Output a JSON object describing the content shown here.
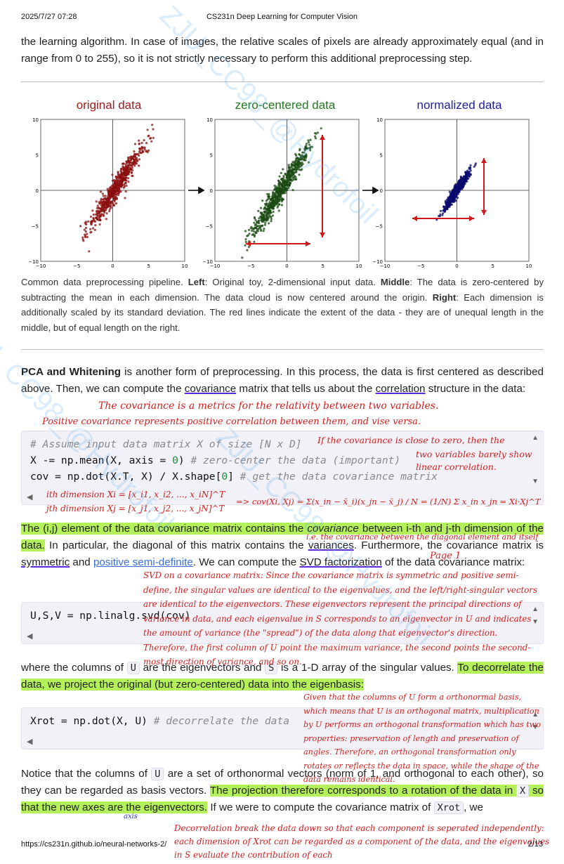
{
  "header": {
    "date": "2025/7/27 07:28",
    "title": "CS231n Deep Learning for Computer Vision"
  },
  "footer": {
    "url": "https://cs231n.github.io/neural-networks-2/",
    "page": "2/13"
  },
  "intro": {
    "text": "the learning algorithm. In case of images, the relative scales of pixels are already approximately equal (and in range from 0 to 255), so it is not strictly necessary to perform this additional preprocessing step."
  },
  "figure": {
    "panels": [
      {
        "title": "original data",
        "title_color": "#a01c1c",
        "point_color": "#8b0f0f"
      },
      {
        "title": "zero-centered data",
        "title_color": "#1f7a1f",
        "point_color": "#1a4a12"
      },
      {
        "title": "normalized data",
        "title_color": "#1f1fa0",
        "point_color": "#0a0a6e"
      }
    ],
    "arrow_color": "#d01818",
    "ticks": {
      "x": [
        "−10",
        "−5",
        "0",
        "5",
        "10"
      ],
      "y": [
        "10",
        "5",
        "0",
        "−5",
        "−10"
      ]
    }
  },
  "caption": {
    "t1": "Common data preprocessing pipeline. ",
    "left_b": "Left",
    "t2": ": Original toy, 2-dimensional input data. ",
    "middle_b": "Middle",
    "t3": ": The data is zero-centered by subtracting the mean in each dimension. The data cloud is now centered around the origin. ",
    "right_b": "Right",
    "t4": ": Each dimension is additionally scaled by its standard deviation. The red lines indicate the extent of the data - they are of unequal length in the middle, but of equal length on the right."
  },
  "pca": {
    "bold": "PCA and Whitening",
    "t1": " is another form of preprocessing. In this process, the data is first centered as described above. Then, we can compute the ",
    "covariance": "covariance",
    "t2": " matrix that tells us about the ",
    "correlation": "correlation",
    "t3": " structure in the data:"
  },
  "code1": {
    "l1": "# Assume input data matrix X of size [N x D]",
    "l2a": "X -= np.mean(X, axis = ",
    "l2n": "0",
    "l2b": ") ",
    "l2c": "# zero-center the data (important)",
    "l3a": "cov = np.dot(X.T, X) / X.shape[",
    "l3n": "0",
    "l3b": "] ",
    "l3c": "# get the data covariance matrix"
  },
  "p3": {
    "hl": "The (i,j) element of the data covariance matrix contains the ",
    "hl_em": "covariance",
    "hl2": " between i-th and j-th dimension of the data.",
    "t1": " In particular, the diagonal of this matrix contains the ",
    "variances": "variances",
    "t2": ". Furthermore, the covariance matrix is ",
    "symmetric": "symmetric",
    "t3": " and ",
    "psd": "positive semi-definite",
    "t4": ". We can compute the ",
    "svd": "SVD factorization",
    "t5": " of the data covariance matrix:"
  },
  "code2": {
    "l1": "U,S,V = np.linalg.svd(cov)"
  },
  "p4": {
    "t1": "where the columns of ",
    "U": "U",
    "t2": " are the eigenvectors and ",
    "S": "S",
    "t3": " is a 1-D array of the singular values. ",
    "hl": "To decorrelate the data, we project the original (but zero-centered) data into the eigenbasis:"
  },
  "code3": {
    "l1a": "Xrot = np.dot(X, U) ",
    "l1c": "# decorrelate the data"
  },
  "p5": {
    "t1": "Notice that the columns of ",
    "U": "U",
    "t2": " are a set of orthonormal vectors (norm of 1, and orthogonal to each other), so they can be regarded as basis vectors. ",
    "hl": "The projection therefore corresponds to a rotation of the data in ",
    "X": "X",
    "hl2": " so that the new axes are the eigenvectors.",
    "t3": " If we were to compute the covariance matrix of ",
    "Xrot": "Xrot",
    "t4": ", we"
  },
  "notes": {
    "n_cov_def": "The covariance is a metrics for the relativity between two variables.",
    "n_pos_cov": "Positive covariance represents positive correlation between them, and vise versa.",
    "n_close_zero": "If the covariance is close to zero, then the",
    "n_close_zero2": "two variables barely show",
    "n_close_zero3": "linear correlation.",
    "n_xi": "ith dimension Xi = [x_i1, x_i2, ..., x_iN]^T",
    "n_xj": "jth dimension Xj = [x_j1, x_j2, ..., x_jN]^T",
    "n_cov_formula": "=> cov(Xi, Xj) = Σ(x_in − x̄_i)(x_jn − x̄_j) / N = (1/N) Σ x_in x_jn = Xi·Xj^T",
    "n_diag": "i.e. the covariance between the diagonal element and itself",
    "n_svd": "SVD on a covariance matrix: Since the covariance matrix is symmetric and positive semi-define, the singular values are identical to the eigenvalues, and the left/right-singular vectors are identical to the eigenvectors. These eigenvectors represent the principal directions of variance in data, and each eigenvalue in S corresponds to an eigenvector in U and indicates the amount of variance (the \"spread\") of the data along that eigenvector's direction. Therefore, the first column of U point the maximum variance, the second points the second-most direction of variance, and so on.",
    "n_ortho": "Given that the columns of U form a orthonormal basis, which means that U is an orthogonal matrix, multiplication by U performs an orthogonal transformation which has two properties: preservation of length and preservation of angles. Therefore, an orthogonal transformation only rotates or reflects the data in space, while the shape of the data remains identical.",
    "n_decor": "Decorrelation break the data down so that each component is seperated independently: each dimension of Xrot can be regarded as a component of the data, and the eigenvalues in S evaluate the contribution of each",
    "n_page": "Page 1",
    "n_axis": "axis"
  },
  "watermark": "ZJU_CC98_@Hydrofoil"
}
